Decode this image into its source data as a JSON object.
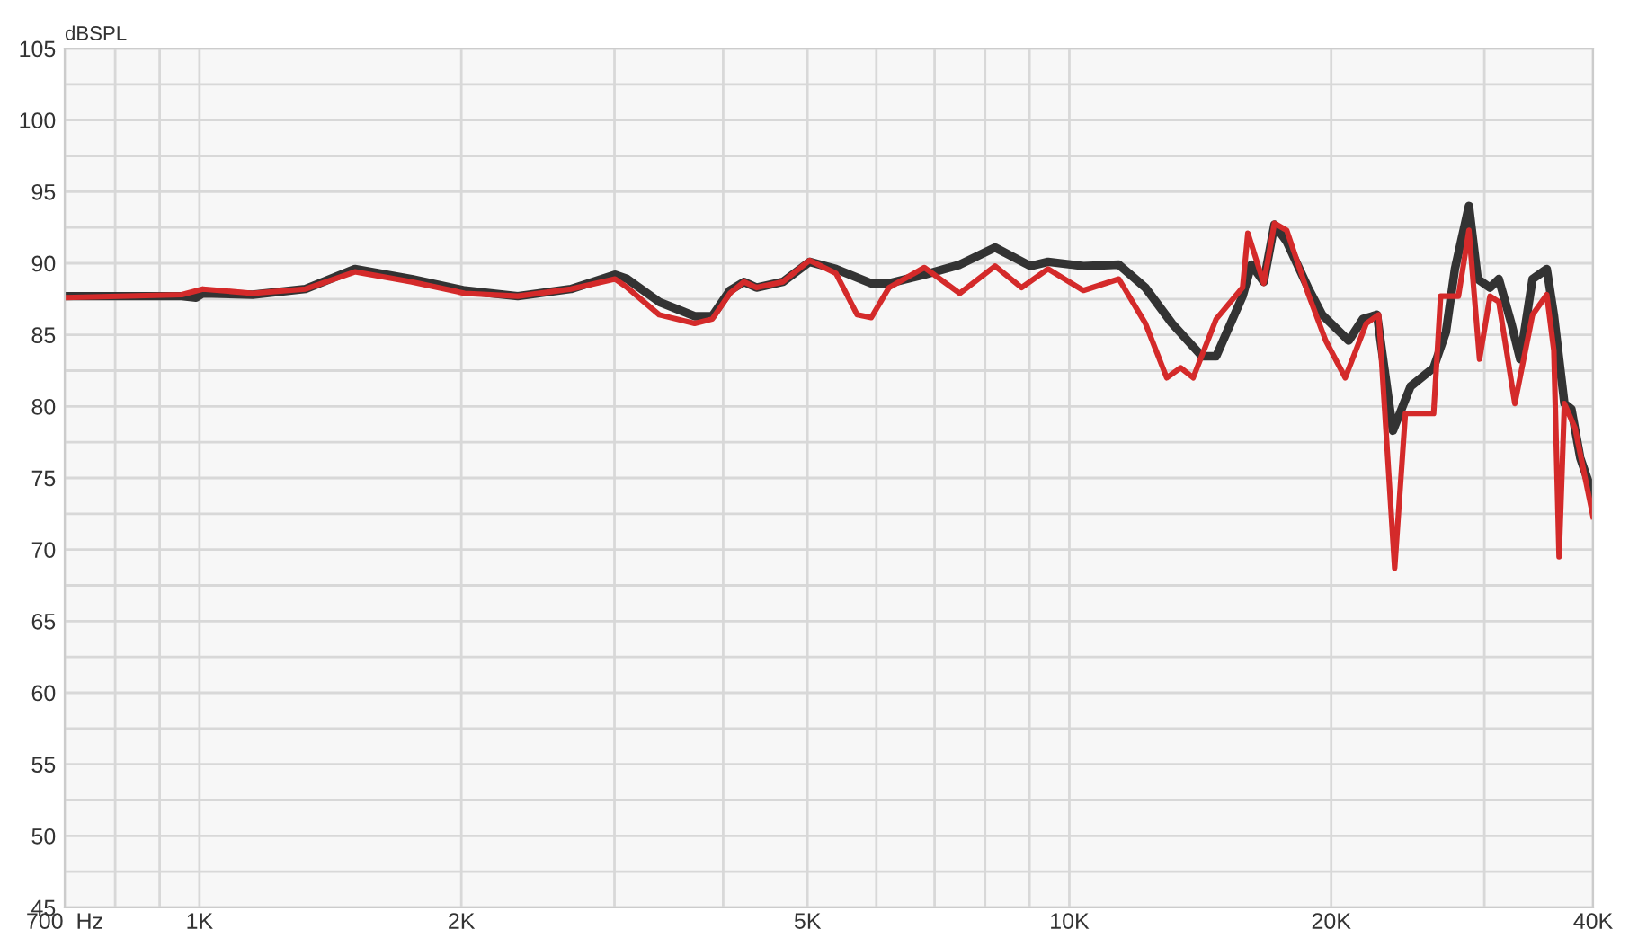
{
  "chart_data": {
    "type": "line",
    "ylabel": "dBSPL",
    "log": "x",
    "grid": true,
    "marker": "none",
    "line_style": "solid",
    "xlim": [
      700,
      40000
    ],
    "ylim": [
      45,
      105
    ],
    "xticks": [
      {
        "value": 700,
        "label": "700  Hz"
      },
      {
        "value": 800,
        "label": null
      },
      {
        "value": 900,
        "label": null
      },
      {
        "value": 1000,
        "label": "1K"
      },
      {
        "value": 2000,
        "label": "2K"
      },
      {
        "value": 3000,
        "label": null
      },
      {
        "value": 4000,
        "label": null
      },
      {
        "value": 5000,
        "label": "5K"
      },
      {
        "value": 6000,
        "label": null
      },
      {
        "value": 7000,
        "label": null
      },
      {
        "value": 8000,
        "label": null
      },
      {
        "value": 9000,
        "label": null
      },
      {
        "value": 10000,
        "label": "10K"
      },
      {
        "value": 20000,
        "label": "20K"
      },
      {
        "value": 30000,
        "label": null
      },
      {
        "value": 40000,
        "label": "40K"
      }
    ],
    "yticks": [
      45,
      {
        "value": 47.5,
        "label": null
      },
      50,
      {
        "value": 52.5,
        "label": null
      },
      55,
      {
        "value": 57.5,
        "label": null
      },
      60,
      {
        "value": 62.5,
        "label": null
      },
      65,
      {
        "value": 67.5,
        "label": null
      },
      70,
      {
        "value": 72.5,
        "label": null
      },
      75,
      {
        "value": 77.5,
        "label": null
      },
      80,
      {
        "value": 82.5,
        "label": null
      },
      85,
      {
        "value": 87.5,
        "label": null
      },
      90,
      {
        "value": 92.5,
        "label": null
      },
      95,
      {
        "value": 97.5,
        "label": null
      },
      100,
      {
        "value": 102.5,
        "label": null
      },
      105
    ],
    "series": [
      {
        "color": "#333333",
        "x": [
          700,
          791,
          954,
          991,
          1009,
          1151,
          1324,
          1509,
          1754,
          2018,
          2322,
          2672,
          3004,
          3103,
          3377,
          3709,
          3886,
          4072,
          4227,
          4368,
          4685,
          5026,
          5391,
          5920,
          6204,
          6813,
          7482,
          8215,
          9022,
          9454,
          10380,
          11400,
          12230,
          13120,
          14210,
          14750,
          15820,
          16190,
          16730,
          17210,
          17780,
          18810,
          19530,
          20950,
          21750,
          22580,
          23550,
          24680,
          26230,
          27100,
          27750,
          28800,
          29480,
          30450,
          31170,
          32220,
          32980,
          34080,
          35390,
          36060,
          37080,
          37780,
          38670,
          40000
        ],
        "values": [
          87.7,
          87.7,
          87.7,
          87.6,
          87.9,
          87.8,
          88.2,
          89.6,
          88.9,
          88.1,
          87.7,
          88.2,
          89.2,
          88.9,
          87.3,
          86.3,
          86.3,
          88.1,
          88.7,
          88.3,
          88.7,
          90.1,
          89.6,
          88.6,
          88.6,
          89.2,
          89.9,
          91.1,
          89.8,
          90.1,
          89.8,
          89.9,
          88.3,
          85.8,
          83.5,
          83.5,
          87.7,
          89.9,
          88.7,
          92.7,
          91.5,
          88.3,
          86.4,
          84.6,
          86.1,
          86.4,
          78.3,
          81.4,
          82.7,
          85.2,
          89.6,
          94.0,
          88.9,
          88.3,
          88.9,
          85.8,
          83.3,
          88.9,
          89.6,
          86.4,
          80.2,
          79.8,
          76.4,
          73.8
        ]
      },
      {
        "color": "#d42a2a",
        "x": [
          700,
          954,
          1009,
          1151,
          1324,
          1509,
          1754,
          2018,
          2322,
          2672,
          3004,
          3103,
          3377,
          3709,
          3886,
          4072,
          4227,
          4368,
          4685,
          5026,
          5391,
          5703,
          5920,
          6204,
          6813,
          7482,
          8215,
          8814,
          9454,
          10380,
          11400,
          12230,
          12940,
          13430,
          13880,
          14750,
          15820,
          16040,
          16730,
          17210,
          17780,
          18810,
          19710,
          20760,
          21950,
          22680,
          23660,
          24340,
          26230,
          26720,
          28010,
          28800,
          29620,
          30450,
          31170,
          32520,
          34080,
          35390,
          36060,
          36560,
          37080,
          38130,
          40000
        ],
        "values": [
          87.6,
          87.8,
          88.2,
          87.9,
          88.2,
          89.4,
          88.7,
          87.9,
          87.7,
          88.2,
          88.9,
          88.3,
          86.4,
          85.8,
          86.1,
          87.9,
          88.7,
          88.3,
          88.7,
          90.2,
          89.3,
          86.4,
          86.2,
          88.3,
          89.7,
          87.9,
          89.8,
          88.3,
          89.6,
          88.1,
          88.9,
          85.8,
          82.0,
          82.7,
          82.0,
          86.1,
          88.3,
          92.1,
          88.6,
          92.8,
          92.3,
          87.9,
          84.6,
          82.0,
          85.8,
          86.4,
          68.7,
          79.5,
          79.5,
          87.7,
          87.7,
          92.3,
          83.3,
          87.7,
          87.3,
          80.2,
          86.4,
          87.8,
          83.9,
          69.5,
          80.2,
          78.5,
          72.3
        ]
      }
    ]
  }
}
